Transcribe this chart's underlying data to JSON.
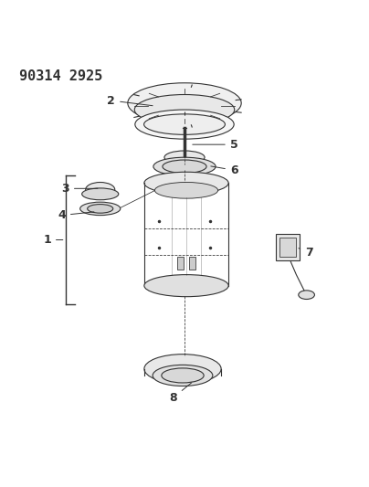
{
  "title": "90314 2925",
  "bg_color": "#ffffff",
  "line_color": "#333333",
  "title_fontsize": 11,
  "label_fontsize": 9,
  "figsize": [
    4.04,
    5.33
  ],
  "dpi": 100
}
